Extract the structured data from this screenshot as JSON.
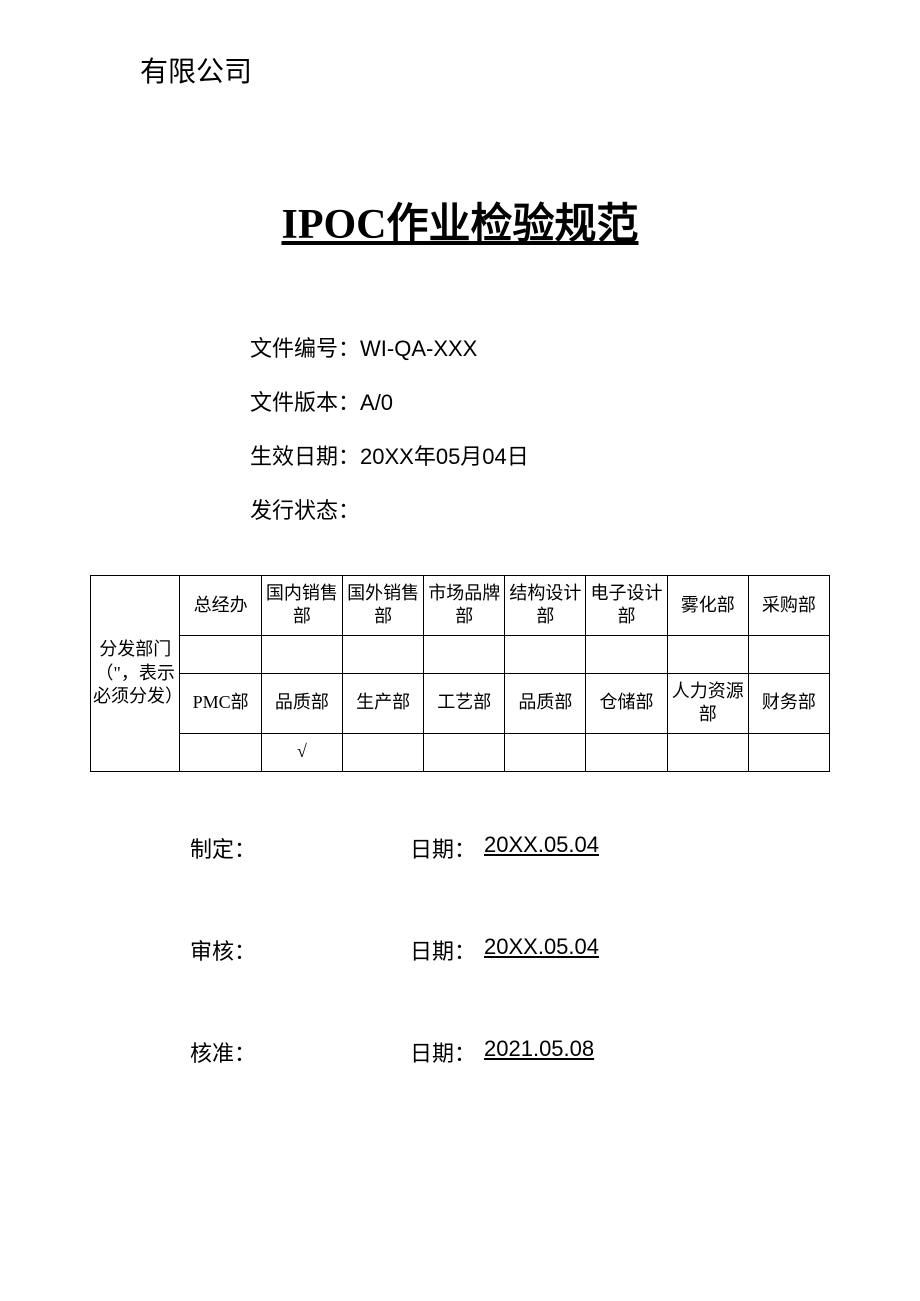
{
  "company": "有限公司",
  "title": "IPOC作业检验规范",
  "info": {
    "docNumberLabel": "文件编号：",
    "docNumber": "WI-QA-XXX",
    "versionLabel": "文件版本：",
    "version": "A/0",
    "effectiveDateLabel": "生效日期：",
    "effectiveDate": "20XX年05月04日",
    "issueStatusLabel": "发行状态：",
    "issueStatus": ""
  },
  "distributionTable": {
    "labelLine1": "分发部门",
    "labelLine2": "（\"，表示",
    "labelLine3": "必须分发）",
    "row1": [
      "总经办",
      "国内销售部",
      "国外销售部",
      "市场品牌部",
      "结构设计部",
      "电子设计部",
      "雾化部",
      "采购部"
    ],
    "row1checks": [
      "",
      "",
      "",
      "",
      "",
      "",
      "",
      ""
    ],
    "row2": [
      "PMC部",
      "品质部",
      "生产部",
      "工艺部",
      "品质部",
      "仓储部",
      "人力资源部",
      "财务部"
    ],
    "row2checks": [
      "",
      "√",
      "",
      "",
      "",
      "",
      "",
      ""
    ]
  },
  "signatures": {
    "prepare": {
      "label": "制定：",
      "dateLabel": "日期：",
      "date": "20XX.05.04"
    },
    "review": {
      "label": "审核：",
      "dateLabel": "日期：",
      "date": "20XX.05.04"
    },
    "approve": {
      "label": "核准：",
      "dateLabel": "日期：",
      "date": "2021.05.08"
    }
  },
  "colors": {
    "text": "#000000",
    "background": "#ffffff",
    "border": "#000000"
  },
  "typography": {
    "companyFontSize": 28,
    "titleFontSize": 42,
    "infoFontSize": 22,
    "tableFontSize": 18,
    "signatureFontSize": 22
  }
}
